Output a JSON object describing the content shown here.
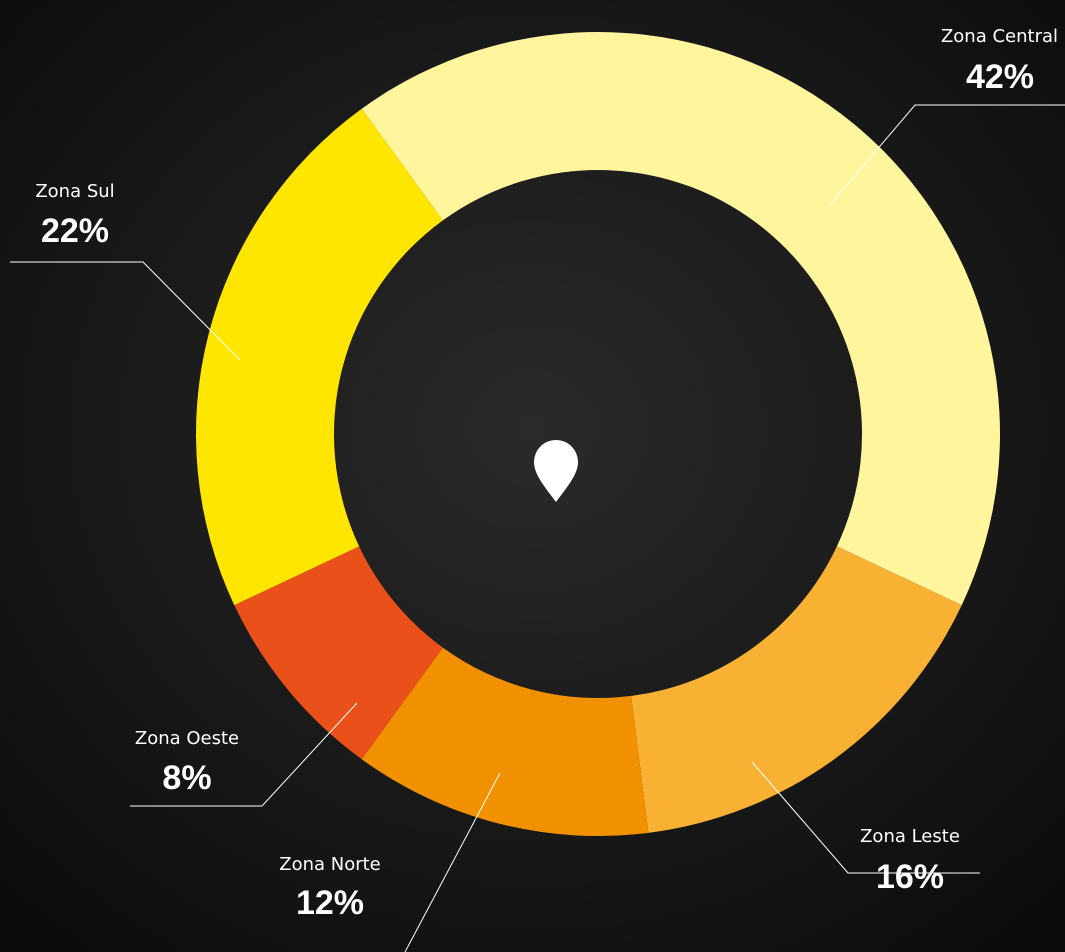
{
  "chart_data": {
    "type": "pie",
    "categories": [
      "Zona Central",
      "Zona Leste",
      "Zona Norte",
      "Zona Oeste",
      "Zona Sul"
    ],
    "values": [
      42,
      16,
      12,
      8,
      22
    ],
    "value_labels": [
      "42%",
      "16%",
      "12%",
      "8%",
      "22%"
    ],
    "colors": [
      "#fff59d",
      "#f8b133",
      "#f29100",
      "#e9501a",
      "#ffe600"
    ]
  }
}
